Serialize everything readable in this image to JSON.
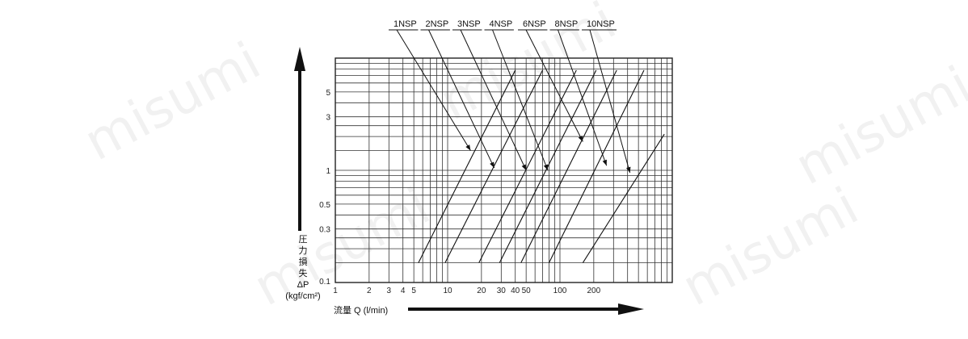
{
  "watermark": "misumi",
  "chart_data": {
    "type": "line",
    "title": "",
    "x_scale": "log",
    "y_scale": "log",
    "xlim": [
      1,
      1000
    ],
    "ylim": [
      0.1,
      10
    ],
    "grid": true,
    "x_tick_labels": [
      {
        "value": 1,
        "label": "1"
      },
      {
        "value": 2,
        "label": "2"
      },
      {
        "value": 3,
        "label": "3"
      },
      {
        "value": 4,
        "label": "4"
      },
      {
        "value": 5,
        "label": "5"
      },
      {
        "value": 10,
        "label": "10"
      },
      {
        "value": 20,
        "label": "20"
      },
      {
        "value": 30,
        "label": "30"
      },
      {
        "value": 40,
        "label": "40"
      },
      {
        "value": 50,
        "label": "50"
      },
      {
        "value": 100,
        "label": "100"
      },
      {
        "value": 200,
        "label": "200"
      }
    ],
    "y_tick_labels": [
      {
        "value": 0.1,
        "label": "0.1"
      },
      {
        "value": 0.3,
        "label": "0.3"
      },
      {
        "value": 0.5,
        "label": "0.5"
      },
      {
        "value": 1,
        "label": "1"
      },
      {
        "value": 3,
        "label": "3"
      },
      {
        "value": 5,
        "label": "5"
      }
    ],
    "xlabel": "流量 Q (l/min)",
    "ylabel_lines": [
      "圧",
      "力",
      "損",
      "失",
      "ΔP",
      "(kgf/cm²)"
    ],
    "series": [
      {
        "name": "1NSP",
        "points": [
          [
            5.5,
            0.15
          ],
          [
            40,
            7.8
          ]
        ],
        "arrow_to": [
          16,
          1.5
        ]
      },
      {
        "name": "2NSP",
        "points": [
          [
            9.5,
            0.15
          ],
          [
            70,
            7.8
          ]
        ],
        "arrow_to": [
          26,
          1.05
        ]
      },
      {
        "name": "3NSP",
        "points": [
          [
            19,
            0.15
          ],
          [
            140,
            7.8
          ]
        ],
        "arrow_to": [
          50,
          1.0
        ]
      },
      {
        "name": "4NSP",
        "points": [
          [
            29,
            0.15
          ],
          [
            210,
            7.8
          ]
        ],
        "arrow_to": [
          78,
          1.0
        ]
      },
      {
        "name": "6NSP",
        "points": [
          [
            45,
            0.15
          ],
          [
            320,
            7.8
          ]
        ],
        "arrow_to": [
          160,
          1.8
        ]
      },
      {
        "name": "8NSP",
        "points": [
          [
            80,
            0.15
          ],
          [
            560,
            7.8
          ]
        ],
        "arrow_to": [
          260,
          1.1
        ]
      },
      {
        "name": "10NSP",
        "points": [
          [
            160,
            0.15
          ],
          [
            850,
            2.1
          ]
        ],
        "arrow_to": [
          420,
          0.95
        ]
      }
    ]
  }
}
